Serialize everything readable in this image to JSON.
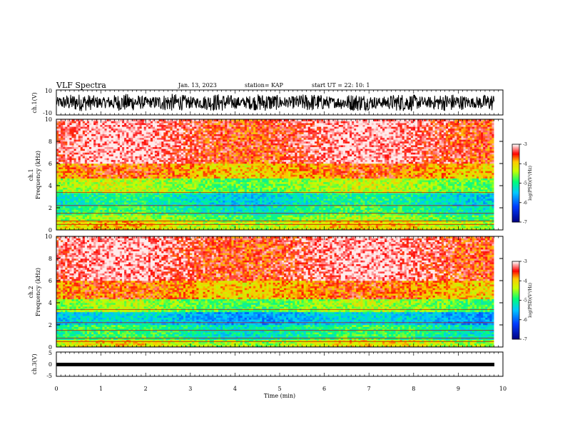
{
  "header": {
    "title": "VLF Spectra",
    "date": "Jan. 13, 2023",
    "station": "station= KAP",
    "start": "start UT =  22: 10: 1"
  },
  "colors": {
    "low": "#000080",
    "mid_low": "#00a0ff",
    "mid": "#00ff80",
    "mid_high": "#ffff00",
    "high": "#ff0000",
    "top": "#ffffff"
  },
  "chart_data": [
    {
      "type": "line",
      "panel": "ch1-waveform",
      "ylabel": "ch.1(V)",
      "ylim": [
        -10,
        10
      ],
      "y_ticks": [
        "10",
        "-10"
      ],
      "xlim": [
        0,
        10
      ],
      "x_end": 9.8,
      "description_values": "dense oscillating trace filling approximately -7 to 7 V"
    },
    {
      "type": "heatmap",
      "panel": "ch1-spectrogram",
      "ylabel_line1": "ch.1",
      "ylabel_line2": "Frequency (kHz)",
      "ylim": [
        0,
        10
      ],
      "y_ticks": [
        "0",
        "2",
        "4",
        "6",
        "8",
        "10"
      ],
      "xlim": [
        0,
        10
      ],
      "x_end": 9.8,
      "colorbar": {
        "label": "log(PSD)(V²/Hz)",
        "ticks": [
          "-3",
          "-4",
          "-5",
          "-6",
          "-7"
        ],
        "range": [
          -7,
          -3
        ]
      },
      "bands_khz": [
        {
          "from": 0,
          "to": 0.8,
          "level": -4.2
        },
        {
          "from": 0.8,
          "to": 1.4,
          "level": -4.6
        },
        {
          "from": 1.4,
          "to": 2.2,
          "level": -5.0
        },
        {
          "from": 2.2,
          "to": 3.4,
          "level": -5.2
        },
        {
          "from": 3.4,
          "to": 4.6,
          "level": -4.5
        },
        {
          "from": 4.6,
          "to": 6.0,
          "level": -3.8
        },
        {
          "from": 6.0,
          "to": 10,
          "level": -3.3
        }
      ]
    },
    {
      "type": "heatmap",
      "panel": "ch2-spectrogram",
      "ylabel_line1": "ch.2",
      "ylabel_line2": "Frequency (kHz)",
      "ylim": [
        0,
        10
      ],
      "y_ticks": [
        "0",
        "2",
        "4",
        "6",
        "8",
        "10"
      ],
      "xlim": [
        0,
        10
      ],
      "x_end": 9.8,
      "colorbar": {
        "label": "log(PSD)(V²/Hz)",
        "ticks": [
          "-3",
          "-4",
          "-5",
          "-6",
          "-7"
        ],
        "range": [
          -7,
          -3
        ]
      },
      "bands_khz": [
        {
          "from": 0,
          "to": 0.6,
          "level": -4.3
        },
        {
          "from": 0.6,
          "to": 2.0,
          "level": -5.0
        },
        {
          "from": 2.0,
          "to": 3.2,
          "level": -5.5
        },
        {
          "from": 3.2,
          "to": 4.4,
          "level": -4.6
        },
        {
          "from": 4.4,
          "to": 6.0,
          "level": -3.8
        },
        {
          "from": 6.0,
          "to": 10,
          "level": -3.3
        }
      ]
    },
    {
      "type": "line",
      "panel": "ch3-waveform",
      "ylabel": "ch.3(V)",
      "ylim": [
        -5,
        5
      ],
      "y_ticks": [
        "5",
        "0",
        "-5"
      ],
      "xlim": [
        0,
        10
      ],
      "x_end": 9.8,
      "xlabel": "Time (min)",
      "x_ticks": [
        "0",
        "1",
        "2",
        "3",
        "4",
        "5",
        "6",
        "7",
        "8",
        "9",
        "10"
      ],
      "description_values": "thick flat trace near -0.7 V"
    }
  ]
}
